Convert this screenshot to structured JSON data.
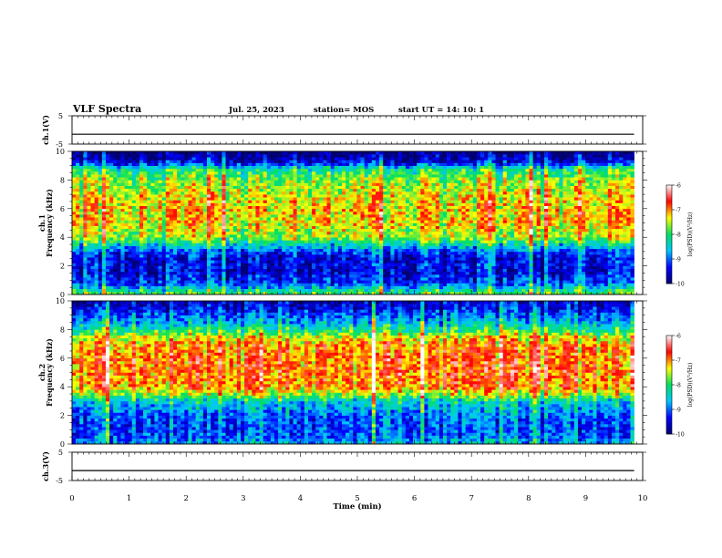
{
  "header": {
    "title": "VLF Spectra",
    "date": "Jul. 25, 2023",
    "station": "station= MOS",
    "start": "start UT =  14: 10: 1"
  },
  "chart_data": [
    {
      "type": "line",
      "panel": "ch1-waveform",
      "ylabel": "ch.1(V)",
      "ylim": [
        -5,
        5
      ],
      "yticks": [
        "5",
        "-5"
      ],
      "x": [
        0,
        9.85
      ],
      "values": [
        -1.5,
        -1.5
      ]
    },
    {
      "type": "heatmap",
      "panel": "ch1-spectrogram",
      "ylabel_channel": "ch.1",
      "ylabel": "Frequency (kHz)",
      "ylim": [
        0,
        10
      ],
      "yticks": [
        "0",
        "2",
        "4",
        "6",
        "8",
        "10"
      ],
      "xlim": [
        0,
        9.85
      ],
      "profile": {
        "freq_khz": [
          0,
          0.4,
          0.8,
          1.2,
          1.6,
          2.0,
          2.5,
          3.0,
          3.5,
          4.0,
          5.0,
          6.0,
          7.0,
          8.0,
          8.8,
          9.2,
          9.6,
          10.0
        ],
        "log_psd": [
          -7.8,
          -8.4,
          -9.2,
          -9.3,
          -9.6,
          -9.4,
          -9.5,
          -9.2,
          -8.4,
          -7.6,
          -7.3,
          -7.25,
          -7.4,
          -7.7,
          -8.2,
          -9.4,
          -9.8,
          -10.0
        ]
      }
    },
    {
      "type": "heatmap",
      "panel": "ch2-spectrogram",
      "ylabel_channel": "ch.2",
      "ylabel": "Frequency (kHz)",
      "ylim": [
        0,
        10
      ],
      "yticks": [
        "0",
        "2",
        "4",
        "6",
        "8",
        "10"
      ],
      "xlim": [
        0,
        9.85
      ],
      "profile": {
        "freq_khz": [
          0,
          0.5,
          1.0,
          2.0,
          3.0,
          3.5,
          4.0,
          5.0,
          6.0,
          7.0,
          7.5,
          8.0,
          8.5,
          9.0,
          9.5,
          10.0
        ],
        "log_psd": [
          -8.6,
          -9.0,
          -9.1,
          -9.0,
          -8.4,
          -7.5,
          -7.0,
          -6.9,
          -6.9,
          -7.0,
          -7.4,
          -8.1,
          -8.6,
          -9.0,
          -9.4,
          -9.6
        ]
      }
    },
    {
      "type": "line",
      "panel": "ch3-waveform",
      "ylabel": "ch.3(V)",
      "ylim": [
        -5,
        5
      ],
      "yticks": [
        "5",
        "-5"
      ],
      "x": [
        0,
        9.85
      ],
      "values": [
        -1.5,
        -1.5
      ]
    }
  ],
  "xaxis": {
    "label": "Time (min)",
    "ticks": [
      "0",
      "1",
      "2",
      "3",
      "4",
      "5",
      "6",
      "7",
      "8",
      "9",
      "10"
    ],
    "xlim": [
      0,
      10
    ]
  },
  "colorbars": [
    {
      "label": "log(PSD)(V²/Hz)",
      "range": [
        -10,
        -6
      ],
      "ticks": [
        "-6",
        "-7",
        "-8",
        "-9",
        "-10"
      ]
    },
    {
      "label": "log(PSD)(V²/Hz)",
      "range": [
        -10,
        -6
      ],
      "ticks": [
        "-6",
        "-7",
        "-8",
        "-9",
        "-10"
      ]
    }
  ],
  "colormap": [
    "#000070",
    "#0000ff",
    "#00c8ff",
    "#00e060",
    "#ffff00",
    "#ff0000",
    "#ffffff"
  ]
}
